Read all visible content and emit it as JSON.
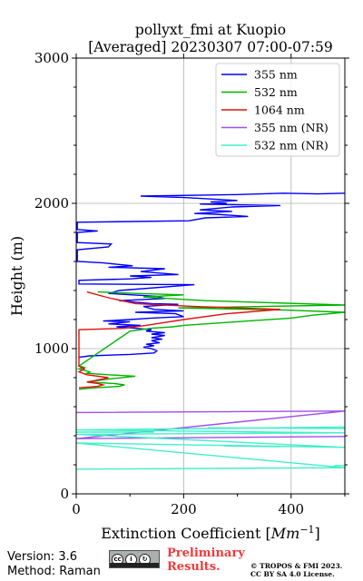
{
  "chart_data": {
    "type": "line",
    "title_line1": "pollyxt_fmi at Kuopio",
    "title_line2": "[Averaged] 20230307 07:00-07:59",
    "xlabel_text": "Extinction Coefficient [",
    "xlabel_unit": "Mm",
    "xlabel_exp": "−1",
    "xlabel_close": "]",
    "ylabel": "Height (m)",
    "xlim": [
      0,
      500
    ],
    "ylim": [
      0,
      3000
    ],
    "x_ticks": [
      0,
      200,
      400
    ],
    "y_ticks": [
      0,
      1000,
      2000,
      3000
    ],
    "grid": true,
    "legend_position": "top-right",
    "series": [
      {
        "name": "355 nm",
        "color": "#0000ff",
        "points": [
          [
            5,
            940
          ],
          [
            25,
            950
          ],
          [
            100,
            960
          ],
          [
            145,
            970
          ],
          [
            150,
            985
          ],
          [
            140,
            1000
          ],
          [
            125,
            1010
          ],
          [
            145,
            1020
          ],
          [
            130,
            1030
          ],
          [
            155,
            1040
          ],
          [
            140,
            1055
          ],
          [
            160,
            1065
          ],
          [
            140,
            1075
          ],
          [
            165,
            1090
          ],
          [
            140,
            1100
          ],
          [
            165,
            1110
          ],
          [
            130,
            1120
          ],
          [
            140,
            1130
          ],
          [
            110,
            1140
          ],
          [
            75,
            1150
          ],
          [
            120,
            1160
          ],
          [
            60,
            1170
          ],
          [
            100,
            1185
          ],
          [
            50,
            1190
          ],
          [
            100,
            1200
          ],
          [
            140,
            1210
          ],
          [
            170,
            1215
          ],
          [
            200,
            1220
          ],
          [
            185,
            1240
          ],
          [
            110,
            1250
          ],
          [
            200,
            1260
          ],
          [
            145,
            1270
          ],
          [
            125,
            1290
          ],
          [
            190,
            1305
          ],
          [
            140,
            1310
          ],
          [
            80,
            1330
          ],
          [
            165,
            1345
          ],
          [
            150,
            1360
          ],
          [
            60,
            1380
          ],
          [
            80,
            1400
          ],
          [
            220,
            1440
          ],
          [
            5,
            1445
          ],
          [
            5,
            1470
          ],
          [
            100,
            1480
          ],
          [
            140,
            1490
          ],
          [
            100,
            1500
          ],
          [
            190,
            1510
          ],
          [
            120,
            1530
          ],
          [
            165,
            1550
          ],
          [
            60,
            1560
          ],
          [
            105,
            1570
          ],
          [
            50,
            1590
          ],
          [
            2,
            1600
          ],
          [
            2,
            1680
          ],
          [
            60,
            1700
          ],
          [
            65,
            1720
          ],
          [
            2,
            1730
          ],
          [
            2,
            1800
          ],
          [
            40,
            1810
          ],
          [
            2,
            1820
          ],
          [
            2,
            1870
          ],
          [
            210,
            1880
          ],
          [
            240,
            1900
          ],
          [
            320,
            1910
          ],
          [
            260,
            1925
          ],
          [
            220,
            1930
          ],
          [
            290,
            1945
          ],
          [
            230,
            1955
          ],
          [
            290,
            1975
          ],
          [
            380,
            1985
          ],
          [
            230,
            1995
          ],
          [
            280,
            2000
          ],
          [
            250,
            2010
          ],
          [
            300,
            2020
          ],
          [
            200,
            2040
          ],
          [
            120,
            2050
          ],
          [
            295,
            2060
          ],
          [
            385,
            2070
          ],
          [
            450,
            2065
          ],
          [
            500,
            2070
          ]
        ]
      },
      {
        "name": "532 nm",
        "color": "#00b400",
        "points": [
          [
            5,
            720
          ],
          [
            35,
            730
          ],
          [
            80,
            740
          ],
          [
            90,
            750
          ],
          [
            70,
            760
          ],
          [
            20,
            770
          ],
          [
            40,
            780
          ],
          [
            60,
            790
          ],
          [
            110,
            810
          ],
          [
            60,
            820
          ],
          [
            20,
            830
          ],
          [
            25,
            840
          ],
          [
            5,
            860
          ],
          [
            15,
            870
          ],
          [
            5,
            880
          ],
          [
            100,
            1120
          ],
          [
            140,
            1140
          ],
          [
            180,
            1150
          ],
          [
            200,
            1160
          ],
          [
            320,
            1190
          ],
          [
            400,
            1210
          ],
          [
            440,
            1230
          ],
          [
            500,
            1250
          ],
          [
            390,
            1265
          ],
          [
            190,
            1280
          ],
          [
            500,
            1300
          ],
          [
            240,
            1330
          ],
          [
            125,
            1355
          ],
          [
            200,
            1370
          ],
          [
            110,
            1380
          ],
          [
            40,
            1390
          ]
        ]
      },
      {
        "name": "1064 nm",
        "color": "#e01010",
        "points": [
          [
            5,
            730
          ],
          [
            40,
            740
          ],
          [
            50,
            750
          ],
          [
            40,
            760
          ],
          [
            20,
            770
          ],
          [
            35,
            780
          ],
          [
            60,
            800
          ],
          [
            20,
            820
          ],
          [
            5,
            840
          ],
          [
            15,
            860
          ],
          [
            5,
            880
          ],
          [
            5,
            1130
          ],
          [
            90,
            1140
          ],
          [
            130,
            1160
          ],
          [
            200,
            1200
          ],
          [
            280,
            1240
          ],
          [
            380,
            1270
          ],
          [
            220,
            1290
          ],
          [
            110,
            1310
          ],
          [
            60,
            1350
          ],
          [
            20,
            1390
          ]
        ]
      },
      {
        "name": "355 nm (NR)",
        "color": "#a04dee",
        "points": [
          [
            0,
            560
          ],
          [
            500,
            570
          ],
          [
            0,
            380
          ],
          [
            500,
            395
          ]
        ]
      },
      {
        "name": "532 nm (NR)",
        "color": "#40f0c8",
        "points": [
          [
            0,
            170
          ],
          [
            500,
            180
          ],
          [
            0,
            350
          ],
          [
            500,
            320
          ],
          [
            0,
            410
          ],
          [
            500,
            420
          ],
          [
            0,
            440
          ],
          [
            500,
            460
          ]
        ]
      }
    ],
    "extra_segments_532nr": [
      [
        [
          145,
          425
        ],
        [
          0,
          425
        ]
      ],
      [
        [
          245,
          455
        ],
        [
          500,
          450
        ]
      ],
      [
        [
          275,
          330
        ],
        [
          380,
          325
        ]
      ],
      [
        [
          480,
          195
        ],
        [
          500,
          195
        ]
      ]
    ]
  },
  "footer": {
    "version": "Version: 3.6",
    "method": "Method: Raman",
    "preliminary_line1": "Preliminary",
    "preliminary_line2": "Results.",
    "copyright_line1": "© TROPOS & FMI 2023.",
    "copyright_line2": "CC BY SA 4.0 License.",
    "cc_symbols": [
      "cc",
      "by",
      "sa"
    ]
  }
}
